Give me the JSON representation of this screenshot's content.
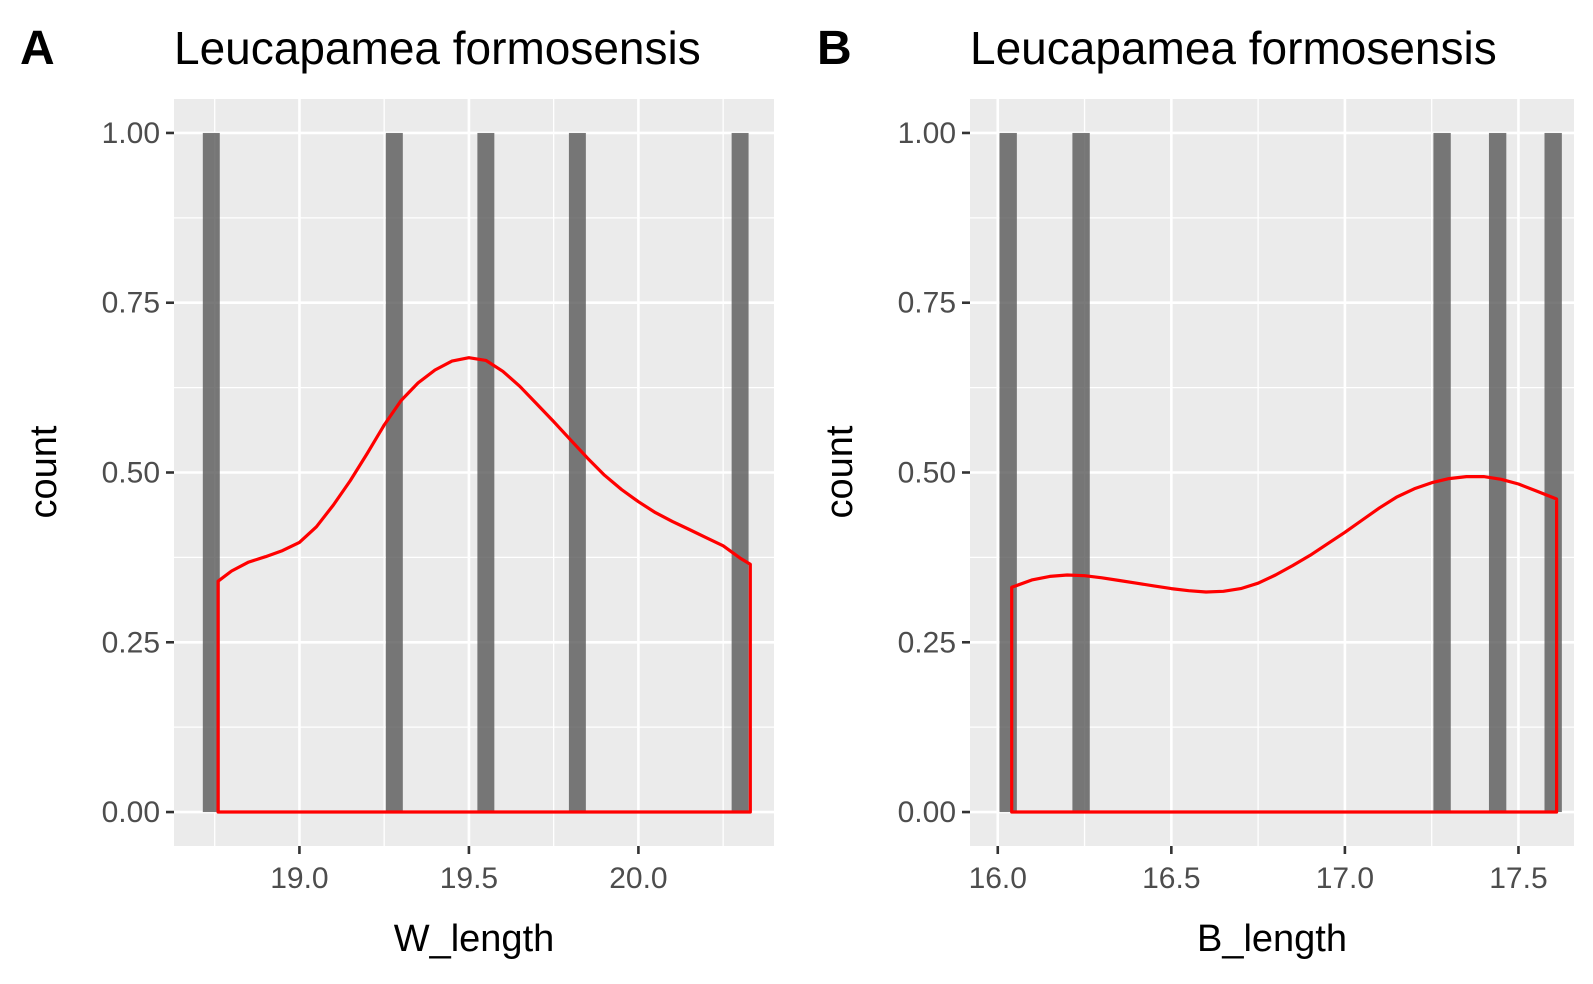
{
  "chart_data": [
    {
      "type": "bar",
      "panel_label": "A",
      "title": "Leucapamea formosensis",
      "xlabel": "W_length",
      "ylabel": "count",
      "xlim": [
        18.63,
        20.4
      ],
      "ylim": [
        -0.05,
        1.05
      ],
      "x_major_ticks": [
        19.0,
        19.5,
        20.0
      ],
      "x_tick_labels": [
        "19.0",
        "19.5",
        "20.0"
      ],
      "y_ticks": [
        0,
        0.25,
        0.5,
        0.75,
        1.0
      ],
      "y_tick_labels": [
        "0.00",
        "0.25",
        "0.50",
        "0.75",
        "1.00"
      ],
      "grid": true,
      "histogram": {
        "bin_width": 0.05,
        "bin_centers": [
          18.74,
          19.28,
          19.55,
          19.82,
          20.3
        ],
        "values": [
          1,
          1,
          1,
          1,
          1
        ]
      },
      "density": {
        "color": "#ff0000",
        "x": [
          18.76,
          18.8,
          18.85,
          18.9,
          18.95,
          19.0,
          19.05,
          19.1,
          19.15,
          19.2,
          19.25,
          19.3,
          19.35,
          19.4,
          19.45,
          19.5,
          19.55,
          19.6,
          19.65,
          19.7,
          19.75,
          19.8,
          19.85,
          19.9,
          19.95,
          20.0,
          20.05,
          20.1,
          20.15,
          20.2,
          20.25,
          20.3,
          20.33
        ],
        "y": [
          0.34,
          0.355,
          0.368,
          0.376,
          0.385,
          0.397,
          0.42,
          0.452,
          0.488,
          0.528,
          0.57,
          0.606,
          0.632,
          0.651,
          0.664,
          0.669,
          0.665,
          0.649,
          0.627,
          0.601,
          0.575,
          0.548,
          0.521,
          0.496,
          0.475,
          0.457,
          0.441,
          0.428,
          0.416,
          0.404,
          0.392,
          0.374,
          0.365
        ]
      }
    },
    {
      "type": "bar",
      "panel_label": "B",
      "title": "Leucapamea formosensis",
      "xlabel": "B_length",
      "ylabel": "count",
      "xlim": [
        15.92,
        17.66
      ],
      "ylim": [
        -0.05,
        1.05
      ],
      "x_major_ticks": [
        16.0,
        16.5,
        17.0,
        17.5
      ],
      "x_tick_labels": [
        "16.0",
        "16.5",
        "17.0",
        "17.5"
      ],
      "y_ticks": [
        0,
        0.25,
        0.5,
        0.75,
        1.0
      ],
      "y_tick_labels": [
        "0.00",
        "0.25",
        "0.50",
        "0.75",
        "1.00"
      ],
      "grid": true,
      "histogram": {
        "bin_width": 0.05,
        "bin_centers": [
          16.03,
          16.24,
          17.28,
          17.44,
          17.6
        ],
        "values": [
          1,
          1,
          1,
          1,
          1
        ]
      },
      "density": {
        "color": "#ff0000",
        "x": [
          16.04,
          16.1,
          16.15,
          16.2,
          16.25,
          16.3,
          16.35,
          16.4,
          16.45,
          16.5,
          16.55,
          16.6,
          16.65,
          16.7,
          16.75,
          16.8,
          16.85,
          16.9,
          16.95,
          17.0,
          17.05,
          17.1,
          17.15,
          17.2,
          17.25,
          17.3,
          17.35,
          17.4,
          17.45,
          17.5,
          17.55,
          17.61
        ],
        "y": [
          0.331,
          0.342,
          0.347,
          0.349,
          0.348,
          0.345,
          0.341,
          0.337,
          0.333,
          0.329,
          0.326,
          0.324,
          0.325,
          0.329,
          0.337,
          0.349,
          0.363,
          0.378,
          0.395,
          0.412,
          0.43,
          0.448,
          0.464,
          0.476,
          0.485,
          0.491,
          0.494,
          0.494,
          0.49,
          0.483,
          0.473,
          0.461
        ]
      }
    }
  ]
}
